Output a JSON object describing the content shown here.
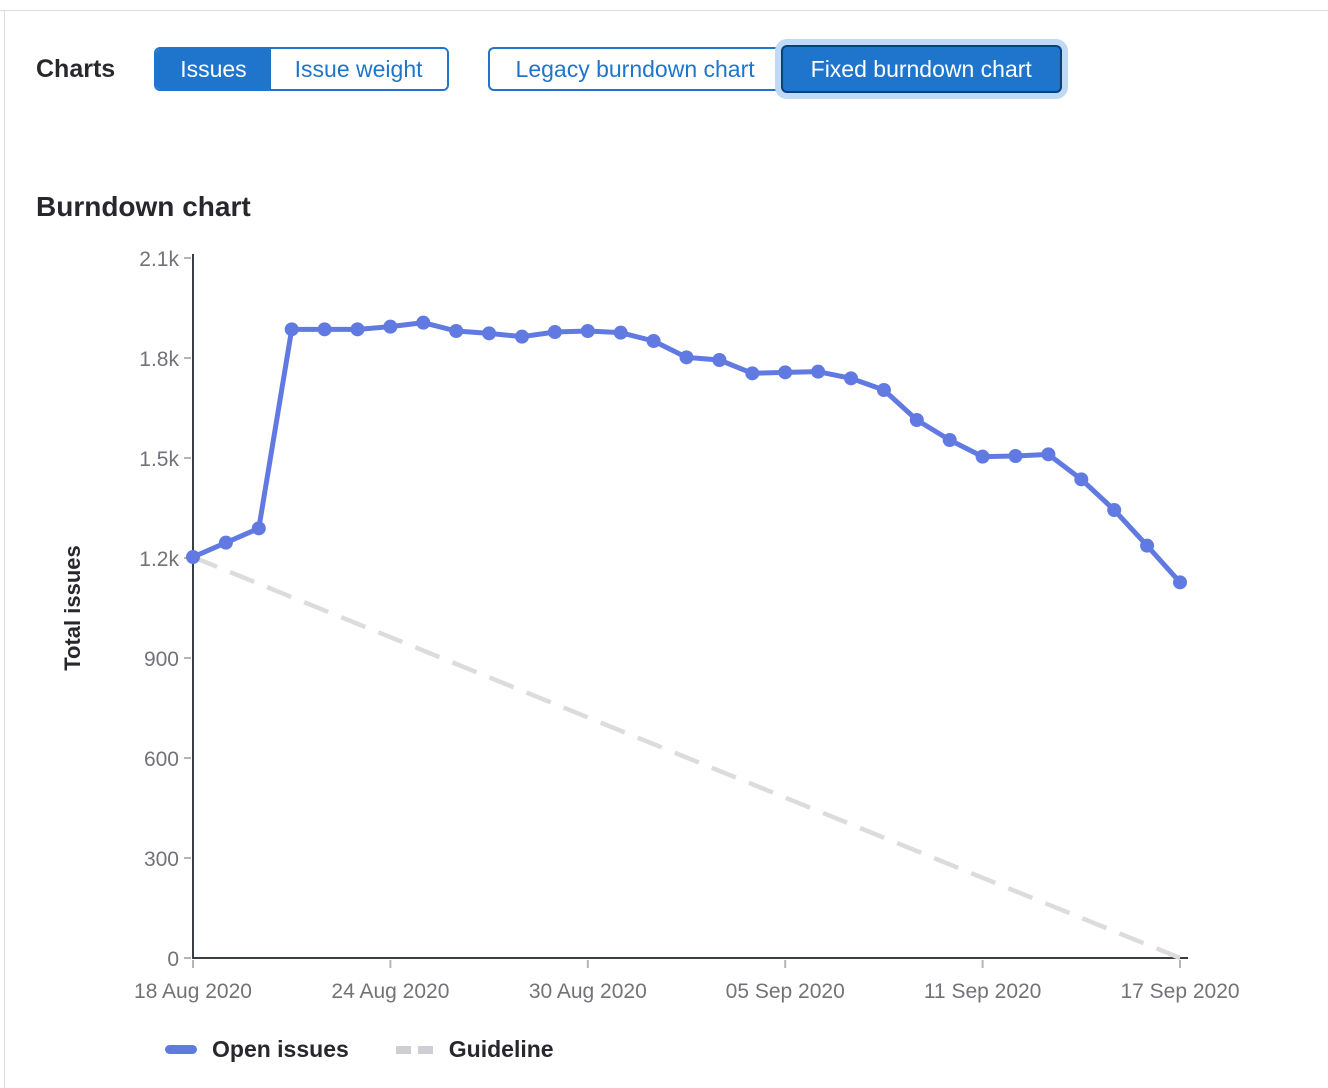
{
  "toolbar": {
    "charts_label": "Charts",
    "issue_toggle": {
      "options": [
        {
          "label": "Issues",
          "selected": true
        },
        {
          "label": "Issue weight",
          "selected": false
        }
      ]
    },
    "version_toggle": {
      "options": [
        {
          "label": "Legacy burndown chart",
          "selected": false
        },
        {
          "label": "Fixed burndown chart",
          "selected": true
        }
      ]
    }
  },
  "section": {
    "heading": "Burndown chart"
  },
  "chart_data": {
    "type": "line",
    "title": "Burndown chart",
    "xlabel": "",
    "ylabel": "Total issues",
    "ylim": [
      0,
      2100
    ],
    "grid": false,
    "legend_position": "bottom",
    "x_axis": {
      "tick_labels": [
        "18 Aug 2020",
        "24 Aug 2020",
        "30 Aug 2020",
        "05 Sep 2020",
        "11 Sep 2020",
        "17 Sep 2020"
      ],
      "tick_day_indices": [
        0,
        6,
        12,
        18,
        24,
        30
      ],
      "total_days": 30
    },
    "y_axis": {
      "ticks": [
        0,
        300,
        600,
        900,
        1200,
        1500,
        1800,
        2100
      ],
      "tick_labels": [
        "0",
        "300",
        "600",
        "900",
        "1.2k",
        "1.5k",
        "1.8k",
        "2.1k"
      ]
    },
    "series": [
      {
        "name": "Open issues",
        "style": "solid",
        "color": "#617ae2",
        "values": [
          1203,
          1246,
          1289,
          1886,
          1886,
          1886,
          1894,
          1906,
          1881,
          1874,
          1864,
          1878,
          1881,
          1876,
          1851,
          1802,
          1794,
          1754,
          1757,
          1759,
          1739,
          1704,
          1614,
          1554,
          1504,
          1506,
          1511,
          1436,
          1344,
          1237,
          1127
        ]
      },
      {
        "name": "Guideline",
        "style": "dashed",
        "color": "#dcdcdc",
        "points": [
          [
            0,
            1203
          ],
          [
            30,
            0
          ]
        ]
      }
    ],
    "legend": [
      {
        "label": "Open issues",
        "swatch": "solid",
        "color": "#617ae2"
      },
      {
        "label": "Guideline",
        "swatch": "dashed",
        "color": "#cfcfd3"
      }
    ]
  },
  "colors": {
    "accent_blue": "#1f75cb",
    "selected_border": "#0a4278",
    "focus_ring": "#c0d9f4",
    "line_blue": "#617ae2",
    "guideline_gray": "#dcdcdc",
    "axis": "#3a3f44",
    "tick": "#b5b5b9",
    "tick_label": "#737278",
    "text_dark": "#28272d",
    "divider": "#dcdcde"
  }
}
